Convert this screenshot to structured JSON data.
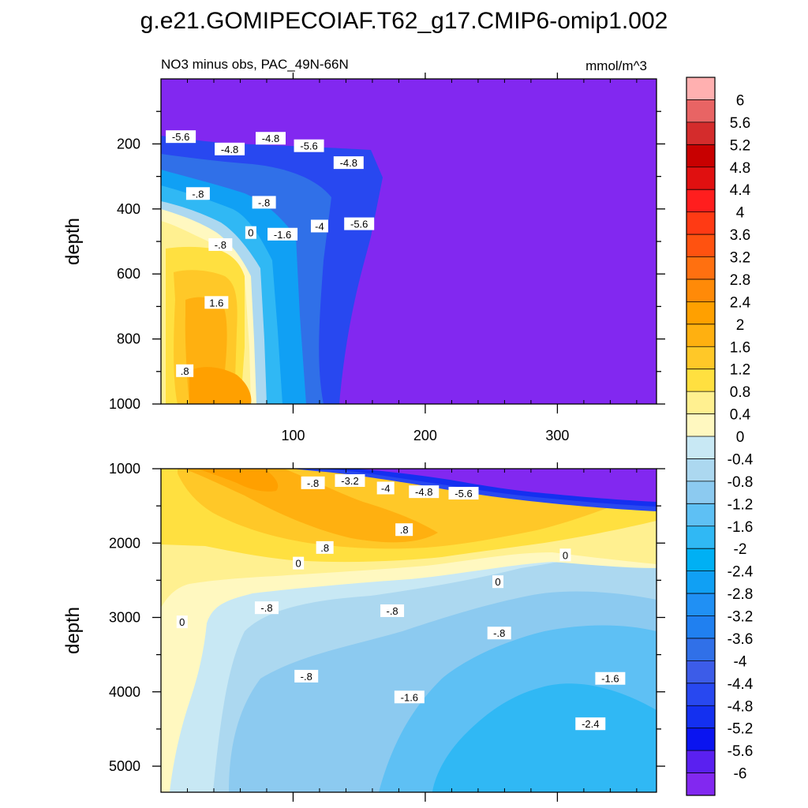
{
  "title": "g.e21.GOMIPECOIAF.T62_g17.CMIP6-omip1.002",
  "chart_data": {
    "type": "heatmap",
    "subtitle_left": "NO3 minus obs, PAC_49N-66N",
    "subtitle_right": "mmol/m^3",
    "units": "mmol/m^3",
    "panels": [
      {
        "name": "upper",
        "ylabel": "depth",
        "ylim": [
          1000,
          0
        ],
        "yticks": [
          200,
          400,
          600,
          800,
          1000
        ],
        "xlim": [
          0,
          375
        ],
        "xticks": [
          100,
          200,
          300
        ],
        "contour_labels": [
          {
            "text": "-5.6",
            "x": 15,
            "y": 180
          },
          {
            "text": "-4.8",
            "x": 52,
            "y": 218
          },
          {
            "text": "-4.8",
            "x": 83,
            "y": 185
          },
          {
            "text": "-5.6",
            "x": 112,
            "y": 208
          },
          {
            "text": "-4.8",
            "x": 142,
            "y": 260
          },
          {
            "text": "-.8",
            "x": 28,
            "y": 355
          },
          {
            "text": "-.8",
            "x": 78,
            "y": 382
          },
          {
            "text": "-4",
            "x": 120,
            "y": 455
          },
          {
            "text": "-5.6",
            "x": 150,
            "y": 448
          },
          {
            "text": "0",
            "x": 68,
            "y": 475
          },
          {
            "text": "-1.6",
            "x": 92,
            "y": 480
          },
          {
            "text": "-.8",
            "x": 45,
            "y": 512
          },
          {
            "text": "1.6",
            "x": 42,
            "y": 690
          },
          {
            "text": ".8",
            "x": 18,
            "y": 900
          }
        ]
      },
      {
        "name": "lower",
        "ylabel": "depth",
        "ylim": [
          5350,
          1000
        ],
        "yticks": [
          1000,
          2000,
          3000,
          4000,
          5000
        ],
        "xlim": [
          0,
          375
        ],
        "contour_labels": [
          {
            "text": "-.8",
            "x": 115,
            "y": 1200
          },
          {
            "text": "-3.2",
            "x": 143,
            "y": 1170
          },
          {
            "text": "-4",
            "x": 170,
            "y": 1270
          },
          {
            "text": "-4.8",
            "x": 199,
            "y": 1320
          },
          {
            "text": "-5.6",
            "x": 229,
            "y": 1340
          },
          {
            "text": ".8",
            "x": 184,
            "y": 1830
          },
          {
            "text": ".8",
            "x": 124,
            "y": 2070
          },
          {
            "text": "0",
            "x": 104,
            "y": 2280
          },
          {
            "text": "0",
            "x": 306,
            "y": 2170
          },
          {
            "text": "0",
            "x": 255,
            "y": 2530
          },
          {
            "text": "-.8",
            "x": 80,
            "y": 2880
          },
          {
            "text": "-.8",
            "x": 175,
            "y": 2920
          },
          {
            "text": "0",
            "x": 16,
            "y": 3070
          },
          {
            "text": "-.8",
            "x": 256,
            "y": 3220
          },
          {
            "text": "-.8",
            "x": 110,
            "y": 3800
          },
          {
            "text": "-1.6",
            "x": 188,
            "y": 4080
          },
          {
            "text": "-1.6",
            "x": 340,
            "y": 3830
          },
          {
            "text": "-2.4",
            "x": 325,
            "y": 4440
          }
        ]
      }
    ],
    "colorbar": {
      "labels": [
        "6",
        "5.6",
        "5.2",
        "4.8",
        "4.4",
        "4",
        "3.6",
        "3.2",
        "2.8",
        "2.4",
        "2",
        "1.6",
        "1.2",
        "0.8",
        "0.4",
        "0",
        "-0.4",
        "-0.8",
        "-1.2",
        "-1.6",
        "-2",
        "-2.4",
        "-2.8",
        "-3.2",
        "-3.6",
        "-4",
        "-4.4",
        "-4.8",
        "-5.2",
        "-5.6",
        "-6"
      ],
      "colors": [
        "#ffb0b0",
        "#e86464",
        "#d42c2c",
        "#c80000",
        "#e01010",
        "#ff1e1e",
        "#ff3a14",
        "#ff5210",
        "#ff7010",
        "#ff8a08",
        "#ffa000",
        "#ffb010",
        "#ffc828",
        "#ffe040",
        "#fff090",
        "#fff8c0",
        "#c8e8f4",
        "#acd8f0",
        "#8ccaf0",
        "#5ec0f4",
        "#30b8f4",
        "#00b0f4",
        "#10a0f4",
        "#2090f4",
        "#2080f0",
        "#3070e8",
        "#3c5ce8",
        "#2848f0",
        "#1430f0",
        "#0a14f0",
        "#5a20f0",
        "#8228f0"
      ]
    }
  }
}
